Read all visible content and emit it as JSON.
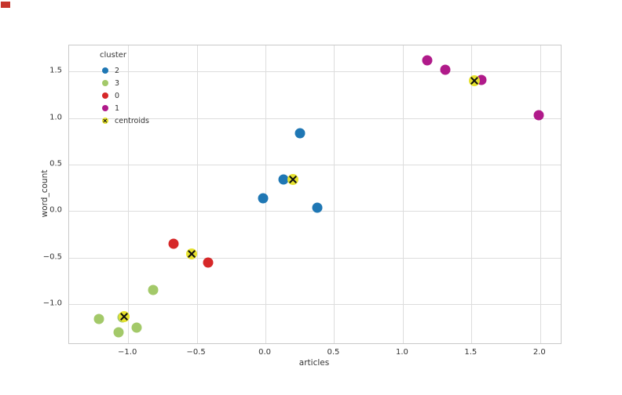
{
  "chart_data": {
    "type": "scatter",
    "title": "",
    "xlabel": "articles",
    "ylabel": "word_count",
    "xlim": [
      -1.43,
      2.15
    ],
    "ylim": [
      -1.42,
      1.78
    ],
    "x_ticks": [
      -1.0,
      -0.5,
      0.0,
      0.5,
      1.0,
      1.5,
      2.0
    ],
    "x_tick_labels": [
      "−1.0",
      "−0.5",
      "0.0",
      "0.5",
      "1.0",
      "1.5",
      "2.0"
    ],
    "y_ticks": [
      -1.0,
      -0.5,
      0.0,
      0.5,
      1.0,
      1.5
    ],
    "y_tick_labels": [
      "−1.0",
      "−0.5",
      "0.0",
      "0.5",
      "1.0",
      "1.5"
    ],
    "grid": true,
    "grid_color": "#dddddd",
    "spine_color": "#c9c9c9",
    "text_color": "#333333",
    "marker_size": 13,
    "centroid_size": 14,
    "legend": {
      "title": "cluster",
      "position": "upper-left"
    },
    "series": [
      {
        "name": "2",
        "color": "#1f77b4",
        "marker": "circle",
        "points": [
          [
            0.25,
            0.84
          ],
          [
            0.13,
            0.34
          ],
          [
            -0.02,
            0.14
          ],
          [
            0.38,
            0.04
          ]
        ]
      },
      {
        "name": "3",
        "color": "#a3c969",
        "marker": "circle",
        "points": [
          [
            -0.82,
            -0.85
          ],
          [
            -1.21,
            -1.16
          ],
          [
            -1.07,
            -1.3
          ],
          [
            -0.94,
            -1.25
          ],
          [
            -1.04,
            -1.14
          ]
        ]
      },
      {
        "name": "0",
        "color": "#d62728",
        "marker": "circle",
        "points": [
          [
            -0.67,
            -0.35
          ],
          [
            -0.42,
            -0.55
          ]
        ]
      },
      {
        "name": "1",
        "color": "#b01a8a",
        "marker": "circle",
        "points": [
          [
            1.18,
            1.62
          ],
          [
            1.31,
            1.52
          ],
          [
            1.57,
            1.41
          ],
          [
            1.99,
            1.03
          ]
        ]
      },
      {
        "name": "centroids",
        "color": "#e6e22e",
        "marker": "x",
        "points": [
          [
            0.2,
            0.34
          ],
          [
            -0.54,
            -0.46
          ],
          [
            1.52,
            1.4
          ],
          [
            -1.03,
            -1.13
          ]
        ]
      }
    ]
  }
}
